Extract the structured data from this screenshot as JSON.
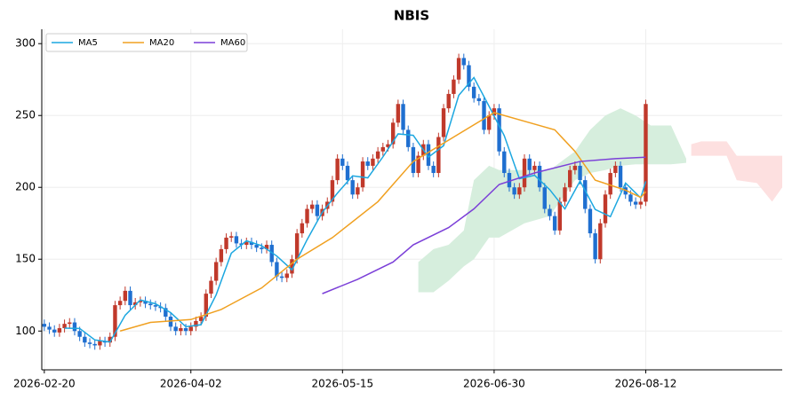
{
  "chart_data": {
    "type": "candlestick",
    "title": "NBIS",
    "x": [
      0,
      1,
      2,
      3,
      4,
      5,
      6,
      7,
      8,
      9,
      10,
      11,
      12,
      13,
      14,
      15,
      16,
      17,
      18,
      19,
      20,
      21,
      22,
      23,
      24,
      25,
      26,
      27,
      28,
      29,
      30,
      31,
      32,
      33,
      34,
      35,
      36,
      37,
      38,
      39,
      40,
      41,
      42,
      43,
      44,
      45,
      46,
      47,
      48,
      49,
      50,
      51,
      52,
      53,
      54,
      55,
      56,
      57,
      58,
      59,
      60,
      61,
      62,
      63,
      64,
      65,
      66,
      67,
      68,
      69,
      70,
      71,
      72,
      73,
      74,
      75,
      76,
      77,
      78,
      79,
      80,
      81,
      82,
      83,
      84,
      85,
      86,
      87,
      88,
      89,
      90,
      91,
      92,
      93,
      94,
      95,
      96,
      97,
      98,
      99,
      100,
      101,
      102,
      103,
      104,
      105,
      106,
      107,
      108,
      109,
      110,
      111,
      112,
      113,
      114,
      115,
      116,
      117,
      118,
      119
    ],
    "open": [
      105,
      103,
      101,
      99,
      102,
      105,
      106,
      100,
      96,
      92,
      91,
      90,
      93,
      92,
      96,
      118,
      121,
      128,
      118,
      120,
      121,
      119,
      118,
      117,
      116,
      110,
      103,
      100,
      102,
      100,
      103,
      107,
      110,
      126,
      135,
      148,
      157,
      165,
      166,
      161,
      160,
      162,
      160,
      158,
      157,
      160,
      148,
      138,
      137,
      140,
      150,
      168,
      175,
      185,
      188,
      180,
      185,
      190,
      205,
      220,
      215,
      205,
      195,
      200,
      218,
      215,
      220,
      225,
      228,
      230,
      245,
      258,
      240,
      228,
      210,
      222,
      230,
      215,
      210,
      235,
      255,
      265,
      275,
      290,
      285,
      270,
      262,
      260,
      240,
      250,
      255,
      225,
      210,
      200,
      195,
      200,
      220,
      212,
      215,
      200,
      185,
      180,
      170,
      190,
      200,
      212,
      215,
      205,
      185,
      168,
      150,
      175,
      195,
      210,
      215,
      200,
      195,
      190,
      188,
      190
    ],
    "high": [
      108,
      106,
      104,
      105,
      108,
      109,
      109,
      103,
      99,
      95,
      94,
      96,
      96,
      99,
      121,
      124,
      131,
      131,
      123,
      124,
      124,
      122,
      121,
      120,
      119,
      113,
      106,
      105,
      105,
      106,
      110,
      113,
      129,
      138,
      151,
      160,
      168,
      169,
      169,
      164,
      165,
      165,
      163,
      161,
      163,
      163,
      151,
      141,
      143,
      153,
      171,
      178,
      188,
      191,
      191,
      188,
      193,
      208,
      223,
      223,
      218,
      208,
      203,
      221,
      221,
      223,
      228,
      231,
      233,
      248,
      261,
      261,
      243,
      231,
      225,
      233,
      233,
      218,
      238,
      258,
      268,
      278,
      293,
      293,
      288,
      273,
      265,
      263,
      253,
      258,
      258,
      228,
      213,
      203,
      203,
      223,
      223,
      218,
      218,
      203,
      188,
      183,
      193,
      203,
      215,
      218,
      218,
      208,
      188,
      171,
      178,
      198,
      213,
      218,
      218,
      203,
      198,
      193,
      193,
      261
    ],
    "low": [
      100,
      98,
      96,
      96,
      99,
      102,
      97,
      93,
      89,
      88,
      87,
      87,
      89,
      89,
      93,
      115,
      118,
      115,
      115,
      117,
      116,
      115,
      114,
      113,
      107,
      100,
      97,
      97,
      97,
      97,
      100,
      104,
      107,
      123,
      132,
      145,
      154,
      162,
      158,
      157,
      157,
      157,
      155,
      154,
      154,
      145,
      135,
      134,
      134,
      137,
      147,
      165,
      172,
      182,
      177,
      177,
      182,
      187,
      202,
      212,
      202,
      192,
      192,
      197,
      212,
      212,
      217,
      222,
      225,
      227,
      242,
      237,
      225,
      207,
      207,
      219,
      212,
      207,
      207,
      232,
      252,
      262,
      272,
      282,
      267,
      259,
      257,
      237,
      237,
      247,
      222,
      207,
      197,
      192,
      192,
      197,
      209,
      209,
      197,
      182,
      177,
      167,
      167,
      187,
      197,
      209,
      202,
      182,
      165,
      147,
      147,
      172,
      192,
      207,
      197,
      192,
      187,
      185,
      185,
      187
    ],
    "close": [
      103,
      101,
      99,
      102,
      105,
      106,
      100,
      96,
      92,
      91,
      90,
      93,
      92,
      96,
      118,
      121,
      128,
      118,
      120,
      121,
      119,
      118,
      117,
      116,
      110,
      103,
      100,
      102,
      100,
      103,
      107,
      110,
      126,
      135,
      148,
      157,
      165,
      166,
      161,
      160,
      162,
      160,
      158,
      157,
      160,
      148,
      138,
      137,
      140,
      150,
      168,
      175,
      185,
      188,
      180,
      185,
      190,
      205,
      220,
      215,
      205,
      195,
      200,
      218,
      215,
      220,
      225,
      228,
      230,
      245,
      258,
      240,
      228,
      210,
      222,
      230,
      215,
      210,
      235,
      255,
      265,
      275,
      290,
      285,
      270,
      262,
      260,
      240,
      250,
      255,
      225,
      210,
      200,
      195,
      200,
      220,
      212,
      215,
      200,
      185,
      180,
      170,
      190,
      200,
      212,
      215,
      205,
      185,
      168,
      150,
      175,
      195,
      210,
      215,
      200,
      195,
      190,
      188,
      190,
      258
    ],
    "up_color": "#c0392b",
    "down_color": "#1f6fd0",
    "series": [
      {
        "name": "MA5",
        "color": "#1ca7e0",
        "x": [
          4,
          7,
          10,
          13,
          16,
          19,
          22,
          25,
          28,
          31,
          34,
          37,
          40,
          43,
          46,
          49,
          52,
          55,
          58,
          61,
          64,
          67,
          70,
          73,
          76,
          79,
          82,
          85,
          88,
          91,
          94,
          97,
          100,
          103,
          106,
          109,
          112,
          115,
          118,
          119
        ],
        "values": [
          102,
          101.8,
          93.8,
          92.4,
          111,
          121.6,
          119,
          112.8,
          103,
          104.4,
          125.2,
          154.2,
          162.8,
          159.4,
          152.2,
          142.6,
          163.6,
          182.6,
          196,
          208,
          206.6,
          221.2,
          237.2,
          236.2,
          221,
          229,
          264,
          276.4,
          256.4,
          236,
          206,
          208.4,
          198.4,
          185,
          204.4,
          184.6,
          179.6,
          203,
          192.6,
          204.2
        ]
      },
      {
        "name": "MA20",
        "color": "#f0a020",
        "x": [
          15,
          21,
          29,
          35,
          43,
          50,
          57,
          66,
          73,
          81,
          89,
          96,
          101,
          105,
          109,
          115,
          118,
          119
        ],
        "values": [
          100,
          106,
          108,
          115,
          130,
          150,
          165,
          190,
          218,
          235,
          252,
          245,
          240,
          225,
          205,
          198,
          193,
          197
        ]
      },
      {
        "name": "MA60",
        "color": "#7b3fd8",
        "x": [
          55,
          62,
          69,
          73,
          80,
          85,
          90,
          97,
          106,
          113,
          119
        ],
        "values": [
          126,
          136,
          148,
          160,
          172,
          185,
          202,
          210,
          218,
          220,
          221
        ]
      }
    ],
    "cloud": [
      {
        "color": "#d6eedd",
        "x": [
          74,
          77,
          80,
          83,
          85,
          88,
          90,
          95,
          100,
          105,
          108,
          111,
          114,
          117,
          120,
          124,
          127
        ],
        "upper": [
          148,
          157,
          160,
          170,
          205,
          215,
          212,
          212,
          212,
          225,
          240,
          250,
          255,
          250,
          243,
          243,
          220
        ],
        "lower": [
          127,
          127,
          135,
          145,
          150,
          165,
          165,
          175,
          180,
          205,
          210,
          212,
          215,
          216,
          216,
          216,
          217
        ]
      },
      {
        "color": "#fde0e0",
        "x": [
          128,
          130,
          135,
          137,
          141,
          144,
          146
        ],
        "upper": [
          230,
          232,
          232,
          222,
          222,
          222,
          222
        ],
        "lower": [
          222,
          222,
          222,
          205,
          203,
          190,
          200
        ]
      }
    ],
    "xlim": [
      -0.5,
      146
    ],
    "ylim": [
      73,
      310
    ],
    "xticks": [
      {
        "value": 0,
        "label": "2026-02-20"
      },
      {
        "value": 29,
        "label": "2026-04-02"
      },
      {
        "value": 59,
        "label": "2026-05-15"
      },
      {
        "value": 89,
        "label": "2026-06-30"
      },
      {
        "value": 119,
        "label": "2026-08-12"
      }
    ],
    "yticks": [
      100,
      150,
      200,
      250,
      300
    ],
    "grid": true,
    "legend": "upper left"
  }
}
